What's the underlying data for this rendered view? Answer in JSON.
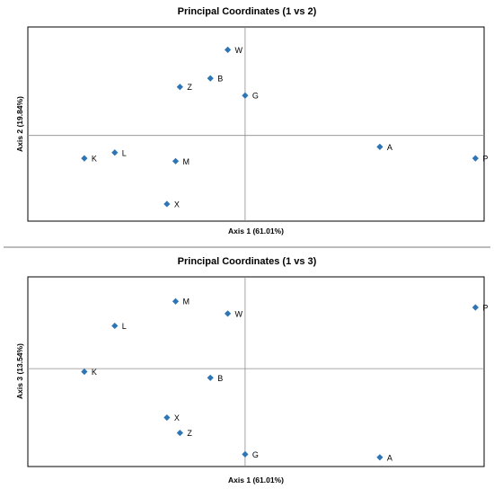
{
  "colors": {
    "marker": "#2e75b6",
    "zero_line": "#8c8c8c",
    "frame": "#000000"
  },
  "chart_data": [
    {
      "type": "scatter",
      "title": "Principal Coordinates (1 vs 2)",
      "xlabel": "Axis 1 (61.01%)",
      "ylabel": "Axis 2 (19.84%)",
      "xlim": [
        -0.5,
        0.55
      ],
      "ylim": [
        -0.3,
        0.38
      ],
      "grid": false,
      "legend": "none",
      "points": [
        {
          "label": "W",
          "x": -0.04,
          "y": 0.3
        },
        {
          "label": "B",
          "x": -0.08,
          "y": 0.2
        },
        {
          "label": "Z",
          "x": -0.15,
          "y": 0.17
        },
        {
          "label": "G",
          "x": 0.0,
          "y": 0.14
        },
        {
          "label": "A",
          "x": 0.31,
          "y": -0.04
        },
        {
          "label": "P",
          "x": 0.53,
          "y": -0.08
        },
        {
          "label": "K",
          "x": -0.37,
          "y": -0.08
        },
        {
          "label": "L",
          "x": -0.3,
          "y": -0.06
        },
        {
          "label": "M",
          "x": -0.16,
          "y": -0.09
        },
        {
          "label": "X",
          "x": -0.18,
          "y": -0.24
        }
      ]
    },
    {
      "type": "scatter",
      "title": "Principal Coordinates (1 vs 3)",
      "xlabel": "Axis 1 (61.01%)",
      "ylabel": "Axis 3 (13.54%)",
      "xlim": [
        -0.5,
        0.55
      ],
      "ylim": [
        -0.32,
        0.3
      ],
      "grid": false,
      "legend": "none",
      "points": [
        {
          "label": "M",
          "x": -0.16,
          "y": 0.22
        },
        {
          "label": "W",
          "x": -0.04,
          "y": 0.18
        },
        {
          "label": "P",
          "x": 0.53,
          "y": 0.2
        },
        {
          "label": "L",
          "x": -0.3,
          "y": 0.14
        },
        {
          "label": "K",
          "x": -0.37,
          "y": -0.01
        },
        {
          "label": "B",
          "x": -0.08,
          "y": -0.03
        },
        {
          "label": "X",
          "x": -0.18,
          "y": -0.16
        },
        {
          "label": "Z",
          "x": -0.15,
          "y": -0.21
        },
        {
          "label": "G",
          "x": 0.0,
          "y": -0.28
        },
        {
          "label": "A",
          "x": 0.31,
          "y": -0.29
        }
      ]
    }
  ]
}
